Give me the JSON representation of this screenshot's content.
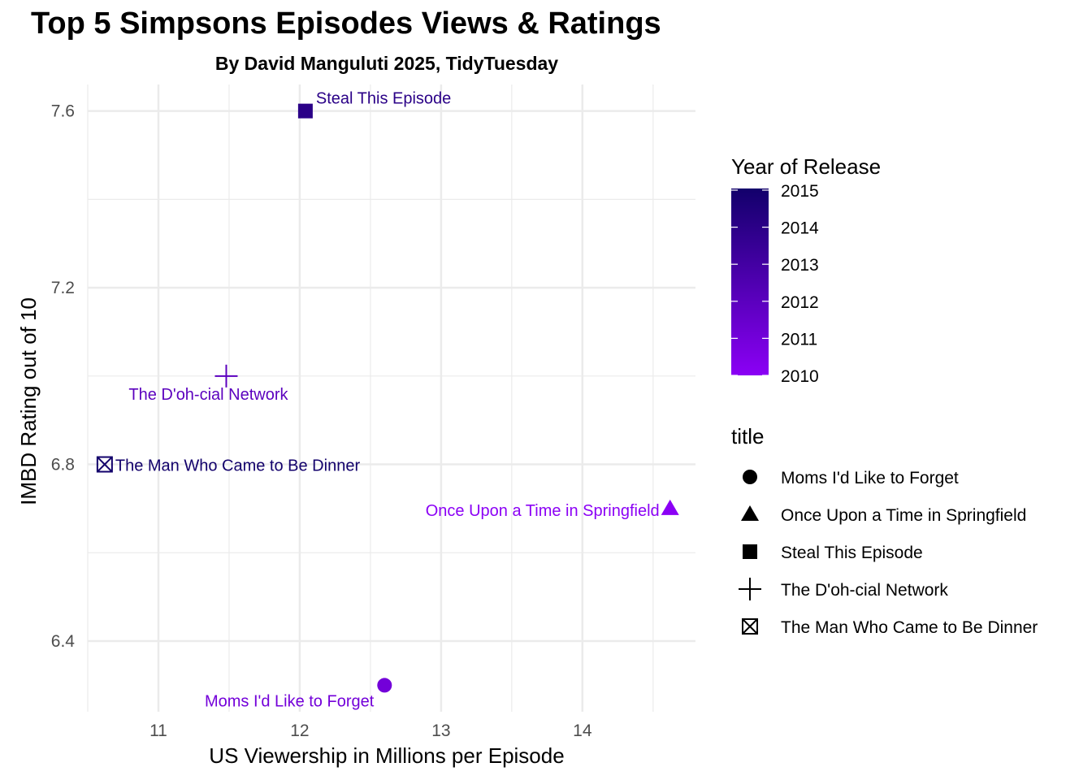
{
  "title": "Top 5 Simpsons Episodes Views & Ratings",
  "subtitle": "By David Manguluti 2025, TidyTuesday",
  "chart_data": {
    "type": "scatter",
    "xlabel": "US Viewership in Millions per Episode",
    "ylabel": "IMBD Rating out of 10",
    "xlim": [
      10.5,
      14.8
    ],
    "ylim": [
      6.24,
      7.66
    ],
    "x_ticks": [
      11,
      12,
      13,
      14
    ],
    "y_ticks": [
      6.4,
      6.8,
      7.2,
      7.6
    ],
    "x_tick_labels": [
      "11",
      "12",
      "13",
      "14"
    ],
    "y_tick_labels": [
      "6.4",
      "6.8",
      "7.2",
      "7.6"
    ],
    "grid": true,
    "points": [
      {
        "title": "Moms I'd Like to Forget",
        "x": 12.6,
        "y": 6.3,
        "year": 2011,
        "shape": "circle"
      },
      {
        "title": "Once Upon a Time in Springfield",
        "x": 14.62,
        "y": 6.7,
        "year": 2010,
        "shape": "triangle"
      },
      {
        "title": "Steal This Episode",
        "x": 12.04,
        "y": 7.6,
        "year": 2014,
        "shape": "square"
      },
      {
        "title": "The D'oh-cial Network",
        "x": 11.48,
        "y": 7.0,
        "year": 2012,
        "shape": "plus"
      },
      {
        "title": "The Man Who Came to Be Dinner",
        "x": 10.62,
        "y": 6.8,
        "year": 2015,
        "shape": "boxcross"
      }
    ],
    "color_legend": {
      "title": "Year of Release",
      "min": 2010,
      "max": 2015,
      "ticks": [
        "2015",
        "2014",
        "2013",
        "2012",
        "2011",
        "2010"
      ],
      "color_low": "#8b00f5",
      "color_high": "#12006b"
    },
    "shape_legend": {
      "title": "title",
      "entries": [
        {
          "label": "Moms I'd Like to Forget",
          "shape": "circle"
        },
        {
          "label": "Once Upon a Time in Springfield",
          "shape": "triangle"
        },
        {
          "label": "Steal This Episode",
          "shape": "square"
        },
        {
          "label": "The D'oh-cial Network",
          "shape": "plus"
        },
        {
          "label": "The Man Who Came to Be Dinner",
          "shape": "boxcross"
        }
      ]
    }
  }
}
